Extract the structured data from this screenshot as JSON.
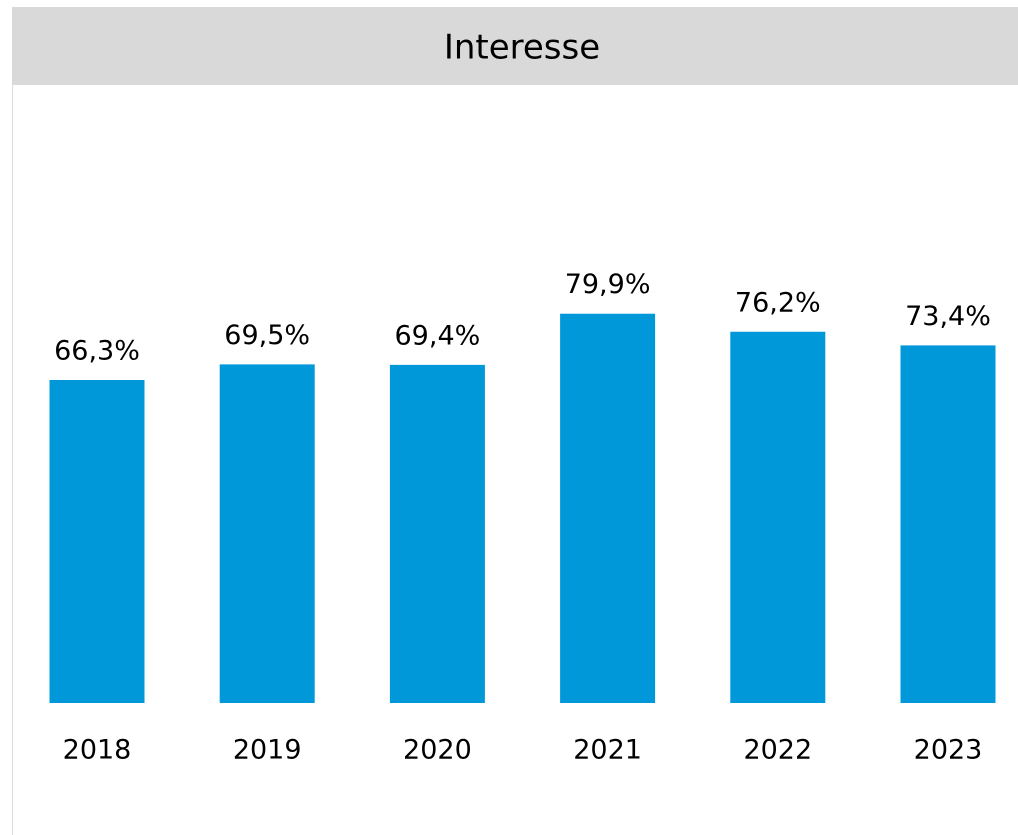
{
  "chart_data": {
    "type": "bar",
    "title": "Interesse",
    "categories": [
      "2018",
      "2019",
      "2020",
      "2021",
      "2022",
      "2023"
    ],
    "values": [
      66.3,
      69.5,
      69.4,
      79.9,
      76.2,
      73.4
    ],
    "value_labels": [
      "66,3%",
      "69,5%",
      "69,4%",
      "79,9%",
      "76,2%",
      "73,4%"
    ],
    "color": "#0098d8"
  }
}
